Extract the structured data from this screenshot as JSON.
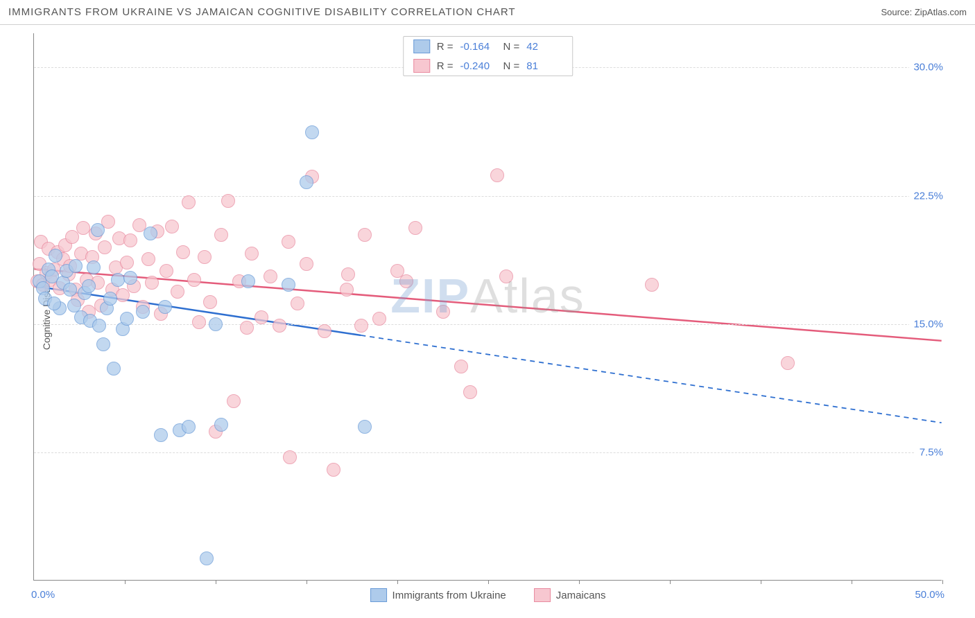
{
  "title": "IMMIGRANTS FROM UKRAINE VS JAMAICAN COGNITIVE DISABILITY CORRELATION CHART",
  "source_label": "Source: ZipAtlas.com",
  "ylabel": "Cognitive Disability",
  "watermark": {
    "part1": "ZIP",
    "part2": "Atlas"
  },
  "chart": {
    "type": "scatter",
    "background_color": "#ffffff",
    "grid_color": "#dcdcdc",
    "axis_color": "#888888",
    "xlim": [
      0,
      50
    ],
    "ylim": [
      0,
      32
    ],
    "x_ticks": [
      5,
      10,
      15,
      20,
      25,
      30,
      35,
      40,
      45,
      50
    ],
    "y_ticks": [
      7.5,
      15.0,
      22.5,
      30.0
    ],
    "y_tick_labels": [
      "7.5%",
      "15.0%",
      "22.5%",
      "30.0%"
    ],
    "x_min_label": "0.0%",
    "x_max_label": "50.0%",
    "label_color": "#4a7fd8",
    "label_fontsize": 15,
    "marker_size": 20,
    "marker_opacity": 0.75,
    "series": [
      {
        "name": "Immigrants from Ukraine",
        "fill_color": "#aecbeb",
        "stroke_color": "#6a9bd8",
        "line_color": "#2e6fd0",
        "R": "-0.164",
        "N": "42",
        "trend": {
          "x1": 0,
          "y1": 17.2,
          "x2": 50,
          "y2": 9.2,
          "solid_until_x": 18
        },
        "points": [
          [
            0.3,
            17.5
          ],
          [
            0.5,
            17.1
          ],
          [
            0.6,
            16.5
          ],
          [
            0.8,
            18.2
          ],
          [
            1.0,
            17.8
          ],
          [
            1.2,
            19.0
          ],
          [
            1.4,
            15.9
          ],
          [
            1.6,
            17.4
          ],
          [
            1.8,
            18.1
          ],
          [
            1.1,
            16.2
          ],
          [
            2.0,
            17.0
          ],
          [
            2.2,
            16.1
          ],
          [
            2.3,
            18.4
          ],
          [
            2.6,
            15.4
          ],
          [
            2.8,
            16.8
          ],
          [
            3.0,
            17.2
          ],
          [
            3.1,
            15.2
          ],
          [
            3.3,
            18.3
          ],
          [
            3.5,
            20.5
          ],
          [
            3.6,
            14.9
          ],
          [
            3.8,
            13.8
          ],
          [
            4.0,
            15.9
          ],
          [
            4.2,
            16.5
          ],
          [
            4.4,
            12.4
          ],
          [
            4.6,
            17.6
          ],
          [
            4.9,
            14.7
          ],
          [
            5.1,
            15.3
          ],
          [
            5.3,
            17.7
          ],
          [
            6.0,
            15.7
          ],
          [
            6.4,
            20.3
          ],
          [
            7.0,
            8.5
          ],
          [
            7.2,
            16.0
          ],
          [
            8.0,
            8.8
          ],
          [
            8.5,
            9.0
          ],
          [
            9.5,
            1.3
          ],
          [
            10.0,
            15.0
          ],
          [
            10.3,
            9.1
          ],
          [
            11.8,
            17.5
          ],
          [
            14.0,
            17.3
          ],
          [
            15.0,
            23.3
          ],
          [
            15.3,
            26.2
          ],
          [
            18.2,
            9.0
          ]
        ]
      },
      {
        "name": "Jamaicans",
        "fill_color": "#f7c7d0",
        "stroke_color": "#e98ba0",
        "line_color": "#e45c7b",
        "R": "-0.240",
        "N": "81",
        "trend": {
          "x1": 0,
          "y1": 18.2,
          "x2": 50,
          "y2": 14.0,
          "solid_until_x": 50
        },
        "points": [
          [
            0.2,
            17.5
          ],
          [
            0.3,
            18.5
          ],
          [
            0.4,
            19.8
          ],
          [
            0.5,
            17.3
          ],
          [
            0.7,
            18.0
          ],
          [
            0.8,
            19.4
          ],
          [
            0.9,
            17.6
          ],
          [
            1.1,
            18.2
          ],
          [
            1.3,
            19.2
          ],
          [
            1.4,
            17.1
          ],
          [
            1.6,
            18.8
          ],
          [
            1.7,
            19.6
          ],
          [
            1.9,
            17.9
          ],
          [
            2.0,
            18.4
          ],
          [
            2.1,
            20.1
          ],
          [
            2.3,
            17.0
          ],
          [
            2.4,
            16.4
          ],
          [
            2.6,
            19.1
          ],
          [
            2.7,
            20.6
          ],
          [
            2.9,
            17.6
          ],
          [
            3.0,
            15.7
          ],
          [
            3.2,
            18.9
          ],
          [
            3.4,
            20.3
          ],
          [
            3.5,
            17.4
          ],
          [
            3.7,
            16.1
          ],
          [
            3.9,
            19.5
          ],
          [
            4.1,
            21.0
          ],
          [
            4.3,
            17.0
          ],
          [
            4.5,
            18.3
          ],
          [
            4.7,
            20.0
          ],
          [
            4.9,
            16.7
          ],
          [
            5.1,
            18.6
          ],
          [
            5.3,
            19.9
          ],
          [
            5.5,
            17.2
          ],
          [
            5.8,
            20.8
          ],
          [
            6.0,
            16.0
          ],
          [
            6.3,
            18.8
          ],
          [
            6.5,
            17.4
          ],
          [
            6.8,
            20.4
          ],
          [
            7.0,
            15.6
          ],
          [
            7.3,
            18.1
          ],
          [
            7.6,
            20.7
          ],
          [
            7.9,
            16.9
          ],
          [
            8.2,
            19.2
          ],
          [
            8.5,
            22.1
          ],
          [
            8.8,
            17.6
          ],
          [
            9.1,
            15.1
          ],
          [
            9.4,
            18.9
          ],
          [
            9.7,
            16.3
          ],
          [
            10.0,
            8.7
          ],
          [
            10.3,
            20.2
          ],
          [
            10.7,
            22.2
          ],
          [
            11.0,
            10.5
          ],
          [
            11.3,
            17.5
          ],
          [
            11.7,
            14.8
          ],
          [
            12.0,
            19.1
          ],
          [
            12.5,
            15.4
          ],
          [
            13.0,
            17.8
          ],
          [
            13.5,
            14.9
          ],
          [
            14.0,
            19.8
          ],
          [
            14.1,
            7.2
          ],
          [
            14.5,
            16.2
          ],
          [
            15.0,
            18.5
          ],
          [
            15.3,
            23.6
          ],
          [
            16.0,
            14.6
          ],
          [
            16.5,
            6.5
          ],
          [
            17.2,
            17.0
          ],
          [
            17.3,
            17.9
          ],
          [
            18.0,
            14.9
          ],
          [
            18.2,
            20.2
          ],
          [
            19.0,
            15.3
          ],
          [
            20.0,
            18.1
          ],
          [
            20.5,
            17.5
          ],
          [
            21.0,
            20.6
          ],
          [
            22.5,
            15.7
          ],
          [
            23.5,
            12.5
          ],
          [
            24.0,
            11.0
          ],
          [
            25.5,
            23.7
          ],
          [
            26.0,
            17.8
          ],
          [
            34.0,
            17.3
          ],
          [
            41.5,
            12.7
          ]
        ]
      }
    ]
  },
  "legend_top": {
    "r_label": "R =",
    "n_label": "N ="
  }
}
